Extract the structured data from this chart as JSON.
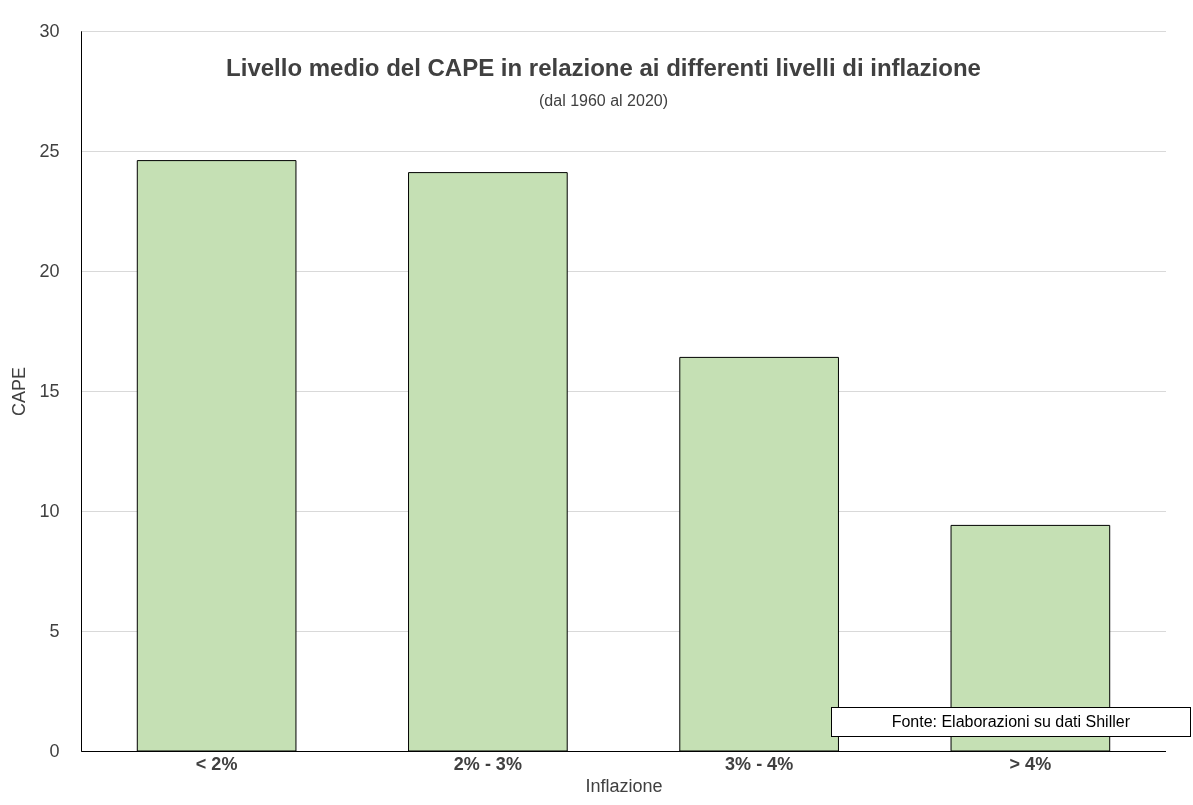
{
  "chart_data": {
    "type": "bar",
    "title": "Livello medio del CAPE in relazione ai differenti livelli di inflazione",
    "subtitle": "(dal 1960 al 2020)",
    "xlabel": "Inflazione",
    "ylabel": "CAPE",
    "categories": [
      "< 2%",
      "2% - 3%",
      "3% - 4%",
      "> 4%"
    ],
    "values": [
      24.6,
      24.1,
      16.4,
      9.4
    ],
    "color": "#c5e0b4",
    "ylim": [
      0,
      30
    ],
    "yticks": [
      0,
      5,
      10,
      15,
      20,
      25,
      30
    ],
    "grid": "y",
    "annotations": [
      "Fonte: Elaborazioni su dati Shiller"
    ]
  }
}
